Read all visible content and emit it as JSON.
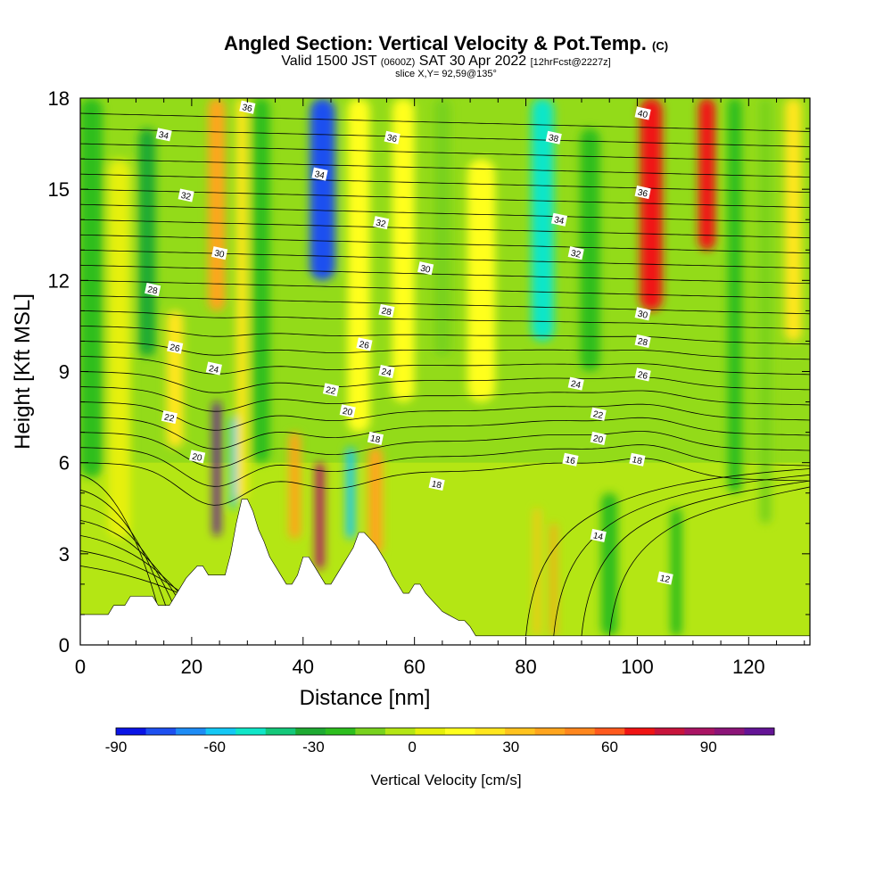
{
  "titles": {
    "main": "Angled Section: Vertical Velocity & Pot.Temp.",
    "main_unit": "(C)",
    "valid_a": "Valid 1500 JST",
    "valid_b": "(0600Z)",
    "valid_c": "SAT 30 Apr 2022",
    "valid_d": "[12hrFcst@2227z]",
    "slice": "slice X,Y= 92,59@135°"
  },
  "chart_data": {
    "type": "heatmap",
    "title": "Angled Section: Vertical Velocity & Pot.Temp.",
    "xlabel": "Distance [nm]",
    "ylabel": "Height [Kft MSL]",
    "xlim": [
      0,
      131
    ],
    "ylim": [
      0,
      18
    ],
    "x_ticks": [
      0,
      20,
      40,
      60,
      80,
      100,
      120
    ],
    "y_ticks": [
      0,
      3,
      6,
      9,
      12,
      15,
      18
    ],
    "grid": false,
    "colorbar": {
      "label": "Vertical Velocity [cm/s]",
      "tick_values": [
        -90,
        -60,
        -30,
        0,
        30,
        60,
        90
      ],
      "range": [
        -90,
        110
      ],
      "colors": [
        "#0a14e6",
        "#1e50f0",
        "#1e8cf5",
        "#14c8f5",
        "#10e6c8",
        "#14c87a",
        "#1eaa32",
        "#2dbe1e",
        "#78d21e",
        "#b4e614",
        "#e6f00a",
        "#ffff1e",
        "#ffe61e",
        "#ffc31e",
        "#ffa51e",
        "#ff871e",
        "#ff5a1e",
        "#f01414",
        "#c8143c",
        "#aa1464",
        "#8c1478",
        "#641496"
      ]
    },
    "velocity_columns": [
      {
        "x": 2,
        "w": 4,
        "zb": 5.5,
        "zt": 18,
        "v": -20
      },
      {
        "x": 7,
        "w": 4,
        "zb": 3.5,
        "zt": 16,
        "v": 5
      },
      {
        "x": 12,
        "w": 3,
        "zb": 9.5,
        "zt": 17,
        "v": -30
      },
      {
        "x": 17,
        "w": 3,
        "zb": 6.5,
        "zt": 11,
        "v": 20
      },
      {
        "x": 24.5,
        "w": 3,
        "zb": 11,
        "zt": 18,
        "v": 45
      },
      {
        "x": 24.5,
        "w": 1.3,
        "zb": 3.6,
        "zt": 8,
        "v": 105
      },
      {
        "x": 29,
        "w": 2,
        "zb": 4.8,
        "zt": 18,
        "v": 25
      },
      {
        "x": 27.5,
        "w": 1,
        "zb": 4.5,
        "zt": 7.5,
        "v": -60
      },
      {
        "x": 32.5,
        "w": 3,
        "zb": 6,
        "zt": 18,
        "v": -20
      },
      {
        "x": 43.5,
        "w": 4.5,
        "zb": 12,
        "zt": 18,
        "v": -80
      },
      {
        "x": 43,
        "w": 1.5,
        "zb": 2.5,
        "zt": 6,
        "v": 85
      },
      {
        "x": 38.5,
        "w": 2,
        "zb": 3.5,
        "zt": 7,
        "v": 40
      },
      {
        "x": 48.5,
        "w": 1.5,
        "zb": 3.5,
        "zt": 6.5,
        "v": -55
      },
      {
        "x": 53,
        "w": 2.5,
        "zb": 3,
        "zt": 6.5,
        "v": 40
      },
      {
        "x": 50,
        "w": 4,
        "zb": 7,
        "zt": 18,
        "v": 15
      },
      {
        "x": 58,
        "w": 4,
        "zb": 8,
        "zt": 18,
        "v": 10
      },
      {
        "x": 65,
        "w": 3,
        "zb": 9.5,
        "zt": 18,
        "v": -10
      },
      {
        "x": 72,
        "w": 5,
        "zb": 8,
        "zt": 16,
        "v": 15
      },
      {
        "x": 83,
        "w": 4,
        "zb": 10,
        "zt": 18,
        "v": -50
      },
      {
        "x": 91.5,
        "w": 3.5,
        "zb": 9,
        "zt": 17,
        "v": -25
      },
      {
        "x": 102.5,
        "w": 4,
        "zb": 11,
        "zt": 18,
        "v": 70
      },
      {
        "x": 112.5,
        "w": 3,
        "zb": 13,
        "zt": 18,
        "v": 65
      },
      {
        "x": 117.5,
        "w": 2.5,
        "zb": 5,
        "zt": 18,
        "v": -25
      },
      {
        "x": 123,
        "w": 2,
        "zb": 4,
        "zt": 18,
        "v": -15
      },
      {
        "x": 128,
        "w": 3,
        "zb": 10,
        "zt": 18,
        "v": 20
      },
      {
        "x": 82,
        "w": 1,
        "zb": 0.3,
        "zt": 4.5,
        "v": 35
      },
      {
        "x": 85,
        "w": 1,
        "zb": 0.3,
        "zt": 4,
        "v": 40
      },
      {
        "x": 107,
        "w": 2,
        "zb": 0.3,
        "zt": 4.5,
        "v": -20
      },
      {
        "x": 95,
        "w": 3,
        "zb": 0.3,
        "zt": 5,
        "v": -25
      }
    ],
    "terrain": {
      "x": [
        0,
        5,
        6,
        8,
        9,
        13,
        14,
        16,
        17,
        18,
        19,
        21,
        22,
        23,
        24,
        26,
        27,
        28,
        29,
        30,
        31,
        32,
        33,
        34,
        35,
        36,
        37,
        38,
        39,
        40,
        41,
        42,
        43,
        44,
        45,
        46,
        47,
        48,
        49,
        50,
        51,
        52,
        53,
        54,
        55,
        56,
        57,
        58,
        59,
        60,
        61,
        62,
        63,
        64,
        65,
        66,
        67,
        68,
        69,
        70,
        71,
        131
      ],
      "z": [
        1.0,
        1.0,
        1.3,
        1.3,
        1.6,
        1.6,
        1.3,
        1.3,
        1.6,
        1.9,
        2.2,
        2.6,
        2.6,
        2.3,
        2.3,
        2.3,
        3.0,
        4.0,
        4.8,
        4.8,
        4.4,
        3.8,
        3.4,
        2.9,
        2.6,
        2.3,
        2.0,
        2.0,
        2.3,
        2.9,
        2.9,
        2.6,
        2.3,
        2.0,
        2.0,
        2.3,
        2.6,
        2.9,
        3.2,
        3.7,
        3.7,
        3.5,
        3.3,
        3.0,
        2.7,
        2.3,
        2.0,
        1.7,
        1.7,
        2.0,
        2.0,
        1.7,
        1.5,
        1.3,
        1.1,
        1.0,
        0.9,
        0.8,
        0.8,
        0.6,
        0.3,
        0.3
      ]
    },
    "theta_contour_labels": [
      {
        "x": 30,
        "z": 17.7,
        "label": "36"
      },
      {
        "x": 15,
        "z": 16.8,
        "label": "34"
      },
      {
        "x": 56,
        "z": 16.7,
        "label": "36"
      },
      {
        "x": 43,
        "z": 15.5,
        "label": "34"
      },
      {
        "x": 85,
        "z": 16.7,
        "label": "38"
      },
      {
        "x": 101,
        "z": 17.5,
        "label": "40"
      },
      {
        "x": 19,
        "z": 14.8,
        "label": "32"
      },
      {
        "x": 54,
        "z": 13.9,
        "label": "32"
      },
      {
        "x": 86,
        "z": 14.0,
        "label": "34"
      },
      {
        "x": 101,
        "z": 14.9,
        "label": "36"
      },
      {
        "x": 25,
        "z": 12.9,
        "label": "30"
      },
      {
        "x": 62,
        "z": 12.4,
        "label": "30"
      },
      {
        "x": 89,
        "z": 12.9,
        "label": "32"
      },
      {
        "x": 13,
        "z": 11.7,
        "label": "28"
      },
      {
        "x": 55,
        "z": 11.0,
        "label": "28"
      },
      {
        "x": 101,
        "z": 10.9,
        "label": "30"
      },
      {
        "x": 17,
        "z": 9.8,
        "label": "26"
      },
      {
        "x": 51,
        "z": 9.9,
        "label": "26"
      },
      {
        "x": 101,
        "z": 10.0,
        "label": "28"
      },
      {
        "x": 24,
        "z": 9.1,
        "label": "24"
      },
      {
        "x": 55,
        "z": 9.0,
        "label": "24"
      },
      {
        "x": 101,
        "z": 8.9,
        "label": "26"
      },
      {
        "x": 45,
        "z": 8.4,
        "label": "22"
      },
      {
        "x": 89,
        "z": 8.6,
        "label": "24"
      },
      {
        "x": 16,
        "z": 7.5,
        "label": "22"
      },
      {
        "x": 48,
        "z": 7.7,
        "label": "20"
      },
      {
        "x": 93,
        "z": 7.6,
        "label": "22"
      },
      {
        "x": 21,
        "z": 6.2,
        "label": "20"
      },
      {
        "x": 53,
        "z": 6.8,
        "label": "18"
      },
      {
        "x": 93,
        "z": 6.8,
        "label": "20"
      },
      {
        "x": 64,
        "z": 5.3,
        "label": "18"
      },
      {
        "x": 88,
        "z": 6.1,
        "label": "16"
      },
      {
        "x": 100,
        "z": 6.1,
        "label": "18"
      },
      {
        "x": 93,
        "z": 3.6,
        "label": "14"
      },
      {
        "x": 105,
        "z": 2.2,
        "label": "12"
      }
    ]
  }
}
